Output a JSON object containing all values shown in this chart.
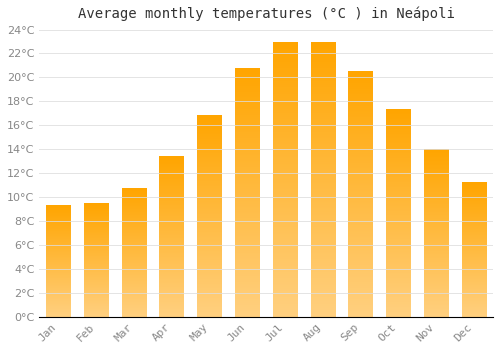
{
  "title": "Average monthly temperatures (°C ) in Neápoli",
  "months": [
    "Jan",
    "Feb",
    "Mar",
    "Apr",
    "May",
    "Jun",
    "Jul",
    "Aug",
    "Sep",
    "Oct",
    "Nov",
    "Dec"
  ],
  "values": [
    9.3,
    9.5,
    10.7,
    13.4,
    16.8,
    20.8,
    22.9,
    22.9,
    20.5,
    17.3,
    14.0,
    11.2
  ],
  "bar_color_top": "#FFA500",
  "bar_color_bottom": "#FFD080",
  "background_color": "#FFFFFF",
  "grid_color": "#DDDDDD",
  "title_fontsize": 10,
  "tick_fontsize": 8,
  "tick_color": "#888888",
  "ylim": [
    0,
    24
  ],
  "yticks": [
    0,
    2,
    4,
    6,
    8,
    10,
    12,
    14,
    16,
    18,
    20,
    22,
    24
  ],
  "bar_width": 0.65
}
